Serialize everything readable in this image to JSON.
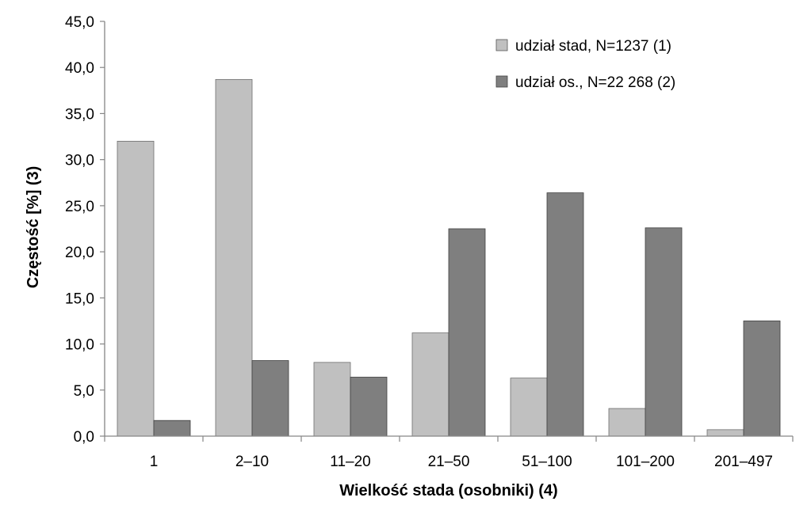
{
  "chart_data": {
    "type": "bar",
    "title": "",
    "xlabel": "Wielkość stada (osobniki) (4)",
    "ylabel": "Częstość [%] (3)",
    "ylim": [
      0,
      45
    ],
    "ytick_step": 5,
    "yticks": [
      "0,0",
      "5,0",
      "10,0",
      "15,0",
      "20,0",
      "25,0",
      "30,0",
      "35,0",
      "40,0",
      "45,0"
    ],
    "categories": [
      "1",
      "2–10",
      "11–20",
      "21–50",
      "51–100",
      "101–200",
      "201–497"
    ],
    "series": [
      {
        "name": "udział stad, N=1237 (1)",
        "color": "#c0c0c0",
        "values": [
          32.0,
          38.7,
          8.0,
          11.2,
          6.3,
          3.0,
          0.7
        ]
      },
      {
        "name": "udział os., N=22 268 (2)",
        "color": "#7f7f7f",
        "values": [
          1.7,
          8.2,
          6.4,
          22.5,
          26.4,
          22.6,
          12.5
        ]
      }
    ],
    "grid": false,
    "legend_position": "top-right"
  }
}
